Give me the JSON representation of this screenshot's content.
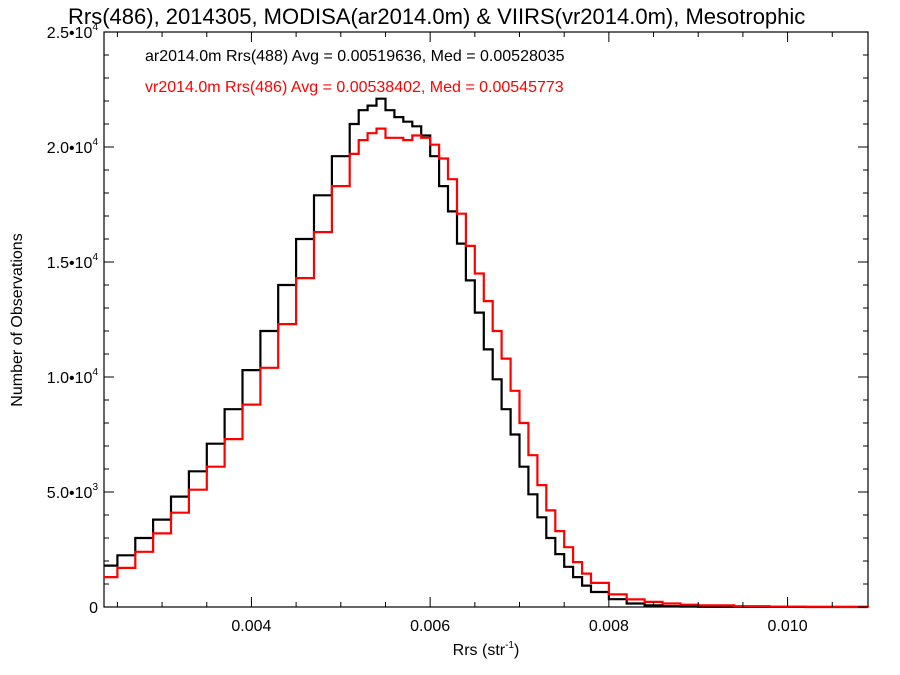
{
  "chart_data": {
    "type": "line",
    "title": "Rrs(486), 2014305, MODISA(ar2014.0m) & VIIRS(vr2014.0m), Mesotrophic",
    "xlabel": "Rrs (str",
    "xlabel_superscript": "-1",
    "xlabel_suffix": ")",
    "ylabel": "Number of Observations",
    "xlim": [
      0.00235,
      0.0109
    ],
    "ylim": [
      0,
      25000
    ],
    "x_ticks": [
      0.004,
      0.006,
      0.008,
      0.01
    ],
    "x_tick_labels": [
      "0.004",
      "0.006",
      "0.008",
      "0.010"
    ],
    "y_ticks": [
      {
        "value": 0,
        "mantissa": "0",
        "exponent": ""
      },
      {
        "value": 5000,
        "mantissa": "5.0•10",
        "exponent": "3"
      },
      {
        "value": 10000,
        "mantissa": "1.0•10",
        "exponent": "4"
      },
      {
        "value": 15000,
        "mantissa": "1.5•10",
        "exponent": "4"
      },
      {
        "value": 20000,
        "mantissa": "2.0•10",
        "exponent": "4"
      },
      {
        "value": 25000,
        "mantissa": "2.5•10",
        "exponent": "4"
      }
    ],
    "grid": false,
    "legend_position": "top-left",
    "series": [
      {
        "name": "ar2014.0m Rrs(488) Avg = 0.00519636, Med = 0.00528035",
        "color": "#000000",
        "x": [
          0.00235,
          0.0025,
          0.0027,
          0.0029,
          0.0031,
          0.0033,
          0.0035,
          0.0037,
          0.0039,
          0.0041,
          0.0043,
          0.0045,
          0.0047,
          0.0049,
          0.0051,
          0.0052,
          0.0053,
          0.0054,
          0.0055,
          0.0056,
          0.0057,
          0.0058,
          0.0059,
          0.006,
          0.0061,
          0.0062,
          0.0063,
          0.0064,
          0.0065,
          0.0066,
          0.0067,
          0.0068,
          0.0069,
          0.007,
          0.0071,
          0.0072,
          0.0073,
          0.0074,
          0.0075,
          0.0076,
          0.0077,
          0.0078,
          0.008,
          0.0082,
          0.0084,
          0.0086,
          0.0088,
          0.009,
          0.0094,
          0.0098,
          0.0102,
          0.0106,
          0.0109
        ],
        "y": [
          1800,
          2250,
          3000,
          3800,
          4800,
          5900,
          7100,
          8600,
          10300,
          12000,
          14000,
          16000,
          17900,
          19600,
          21000,
          21600,
          21800,
          22100,
          21600,
          21300,
          21100,
          20900,
          20500,
          19600,
          18300,
          17200,
          15800,
          14200,
          12800,
          11200,
          9900,
          8600,
          7500,
          6100,
          4900,
          3900,
          3000,
          2300,
          1750,
          1300,
          930,
          650,
          340,
          150,
          70,
          35,
          20,
          10,
          5,
          3,
          2,
          1,
          0
        ]
      },
      {
        "name": "vr2014.0m Rrs(486) Avg = 0.00538402, Med = 0.00545773",
        "color": "#ff0000",
        "x": [
          0.00235,
          0.0025,
          0.0027,
          0.0029,
          0.0031,
          0.0033,
          0.0035,
          0.0037,
          0.0039,
          0.0041,
          0.0043,
          0.0045,
          0.0047,
          0.0049,
          0.0051,
          0.0052,
          0.0053,
          0.0054,
          0.0055,
          0.0056,
          0.0057,
          0.0058,
          0.0059,
          0.006,
          0.0061,
          0.0062,
          0.0063,
          0.0064,
          0.0065,
          0.0066,
          0.0067,
          0.0068,
          0.0069,
          0.007,
          0.0071,
          0.0072,
          0.0073,
          0.0074,
          0.0075,
          0.0076,
          0.0077,
          0.0078,
          0.008,
          0.0082,
          0.0084,
          0.0086,
          0.0088,
          0.009,
          0.0094,
          0.0098,
          0.0102,
          0.0106,
          0.0109
        ],
        "y": [
          1300,
          1700,
          2400,
          3200,
          4100,
          5100,
          6100,
          7300,
          8800,
          10400,
          12300,
          14300,
          16300,
          18300,
          19700,
          20300,
          20600,
          20800,
          20400,
          20400,
          20300,
          20500,
          20400,
          20100,
          19500,
          18600,
          17100,
          15700,
          14500,
          13300,
          12000,
          10800,
          9400,
          8000,
          6600,
          5300,
          4200,
          3300,
          2600,
          1950,
          1450,
          1050,
          550,
          330,
          220,
          150,
          100,
          70,
          35,
          15,
          8,
          3,
          0
        ]
      }
    ]
  }
}
